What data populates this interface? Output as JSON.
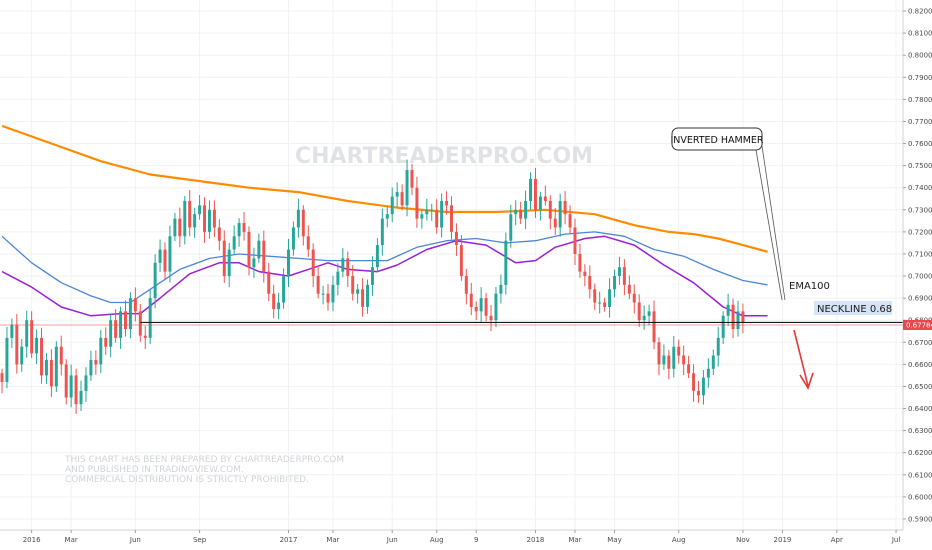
{
  "watermark": "CHARTREADERPRO.COM",
  "disclaimer": [
    "THIS CHART HAS BEEN PREPARED BY CHARTREADERPRO.COM",
    "AND PUBLISHED IN TRADINGVIEW.COM.",
    "COMMERCIAL DISTRIBUTION IS STRICTLY PROHIBITED."
  ],
  "annotations": {
    "inverted_hammer": "INVERTED HAMMER",
    "ema100": "EMA100",
    "neckline": "NECKLINE 0.68"
  },
  "last_price": "0.67784",
  "colors": {
    "up": "#26a69a",
    "down": "#ef5350",
    "ema_orange": "#ff8c00",
    "ema_blue": "#4a86d4",
    "ema_purple": "#9b1fd6",
    "neckline": "#1a1a1a",
    "price_line": "#e5484d",
    "neckline_bg": "#d6e4f7"
  },
  "chart_data": {
    "type": "candlestick",
    "ylim": [
      0.585,
      0.825
    ],
    "y_ticks": [
      "0.59000",
      "0.60000",
      "0.61000",
      "0.62000",
      "0.63000",
      "0.64000",
      "0.65000",
      "0.66000",
      "0.67000",
      "0.68000",
      "0.69000",
      "0.70000",
      "0.71000",
      "0.72000",
      "0.73000",
      "0.74000",
      "0.75000",
      "0.76000",
      "0.77000",
      "0.78000",
      "0.79000",
      "0.80000",
      "0.81000",
      "0.82000"
    ],
    "x_ticks": [
      {
        "label": "2016",
        "week": 6
      },
      {
        "label": "Mar",
        "week": 14
      },
      {
        "label": "Jun",
        "week": 27
      },
      {
        "label": "Sep",
        "week": 40
      },
      {
        "label": "2017",
        "week": 58
      },
      {
        "label": "Mar",
        "week": 67
      },
      {
        "label": "Jun",
        "week": 79
      },
      {
        "label": "Aug",
        "week": 88
      },
      {
        "label": "9",
        "week": 96
      },
      {
        "label": "2018",
        "week": 108
      },
      {
        "label": "Mar",
        "week": 116
      },
      {
        "label": "May",
        "week": 124
      },
      {
        "label": "Aug",
        "week": 137
      },
      {
        "label": "Nov",
        "week": 150
      },
      {
        "label": "2019",
        "week": 158
      },
      {
        "label": "Apr",
        "week": 169
      },
      {
        "label": "Jul",
        "week": 181
      }
    ],
    "week_range": [
      0,
      182
    ],
    "close": [
      0.652,
      0.672,
      0.678,
      0.66,
      0.668,
      0.68,
      0.665,
      0.672,
      0.655,
      0.662,
      0.65,
      0.668,
      0.66,
      0.645,
      0.655,
      0.642,
      0.648,
      0.655,
      0.662,
      0.66,
      0.672,
      0.668,
      0.68,
      0.672,
      0.684,
      0.676,
      0.69,
      0.684,
      0.673,
      0.672,
      0.69,
      0.706,
      0.712,
      0.702,
      0.718,
      0.726,
      0.718,
      0.734,
      0.722,
      0.728,
      0.732,
      0.72,
      0.73,
      0.722,
      0.716,
      0.7,
      0.712,
      0.718,
      0.724,
      0.72,
      0.704,
      0.708,
      0.716,
      0.702,
      0.692,
      0.685,
      0.688,
      0.7,
      0.712,
      0.722,
      0.73,
      0.718,
      0.712,
      0.7,
      0.692,
      0.692,
      0.688,
      0.696,
      0.702,
      0.708,
      0.7,
      0.692,
      0.694,
      0.686,
      0.696,
      0.704,
      0.714,
      0.726,
      0.728,
      0.736,
      0.738,
      0.732,
      0.748,
      0.74,
      0.726,
      0.728,
      0.73,
      0.73,
      0.722,
      0.734,
      0.732,
      0.72,
      0.714,
      0.7,
      0.692,
      0.686,
      0.684,
      0.69,
      0.682,
      0.68,
      0.692,
      0.696,
      0.716,
      0.728,
      0.73,
      0.726,
      0.734,
      0.744,
      0.73,
      0.736,
      0.734,
      0.726,
      0.722,
      0.734,
      0.728,
      0.722,
      0.71,
      0.702,
      0.7,
      0.694,
      0.688,
      0.688,
      0.686,
      0.694,
      0.7,
      0.704,
      0.696,
      0.692,
      0.688,
      0.68,
      0.682,
      0.684,
      0.67,
      0.66,
      0.664,
      0.658,
      0.668,
      0.664,
      0.66,
      0.656,
      0.648,
      0.646,
      0.654,
      0.658,
      0.664,
      0.672,
      0.682,
      0.687,
      0.676,
      0.684,
      0.679
    ],
    "ema_orange": [
      [
        0,
        0.768
      ],
      [
        10,
        0.76
      ],
      [
        20,
        0.752
      ],
      [
        30,
        0.746
      ],
      [
        40,
        0.743
      ],
      [
        50,
        0.74
      ],
      [
        60,
        0.738
      ],
      [
        70,
        0.734
      ],
      [
        80,
        0.731
      ],
      [
        90,
        0.729
      ],
      [
        100,
        0.729
      ],
      [
        110,
        0.73
      ],
      [
        120,
        0.728
      ],
      [
        128,
        0.723
      ],
      [
        135,
        0.72
      ],
      [
        140,
        0.719
      ],
      [
        145,
        0.717
      ],
      [
        150,
        0.714
      ],
      [
        155,
        0.711
      ]
    ],
    "ema_blue": [
      [
        0,
        0.718
      ],
      [
        6,
        0.706
      ],
      [
        12,
        0.697
      ],
      [
        18,
        0.691
      ],
      [
        22,
        0.688
      ],
      [
        26,
        0.688
      ],
      [
        30,
        0.694
      ],
      [
        36,
        0.703
      ],
      [
        42,
        0.708
      ],
      [
        48,
        0.71
      ],
      [
        54,
        0.709
      ],
      [
        60,
        0.708
      ],
      [
        66,
        0.707
      ],
      [
        72,
        0.707
      ],
      [
        78,
        0.707
      ],
      [
        84,
        0.713
      ],
      [
        90,
        0.716
      ],
      [
        96,
        0.717
      ],
      [
        102,
        0.715
      ],
      [
        108,
        0.716
      ],
      [
        114,
        0.719
      ],
      [
        120,
        0.72
      ],
      [
        126,
        0.718
      ],
      [
        132,
        0.712
      ],
      [
        138,
        0.709
      ],
      [
        144,
        0.703
      ],
      [
        150,
        0.698
      ],
      [
        155,
        0.696
      ]
    ],
    "ema_purple": [
      [
        0,
        0.702
      ],
      [
        6,
        0.695
      ],
      [
        12,
        0.686
      ],
      [
        18,
        0.682
      ],
      [
        24,
        0.683
      ],
      [
        28,
        0.683
      ],
      [
        32,
        0.69
      ],
      [
        38,
        0.701
      ],
      [
        44,
        0.706
      ],
      [
        48,
        0.706
      ],
      [
        52,
        0.702
      ],
      [
        58,
        0.7
      ],
      [
        62,
        0.703
      ],
      [
        66,
        0.706
      ],
      [
        70,
        0.703
      ],
      [
        76,
        0.702
      ],
      [
        80,
        0.705
      ],
      [
        86,
        0.712
      ],
      [
        92,
        0.716
      ],
      [
        98,
        0.714
      ],
      [
        104,
        0.706
      ],
      [
        108,
        0.707
      ],
      [
        112,
        0.713
      ],
      [
        118,
        0.717
      ],
      [
        122,
        0.718
      ],
      [
        128,
        0.714
      ],
      [
        134,
        0.705
      ],
      [
        140,
        0.697
      ],
      [
        146,
        0.686
      ],
      [
        150,
        0.682
      ],
      [
        155,
        0.682
      ]
    ],
    "neckline": 0.679,
    "neckline_start_week": 28,
    "last_price": 0.67784
  }
}
